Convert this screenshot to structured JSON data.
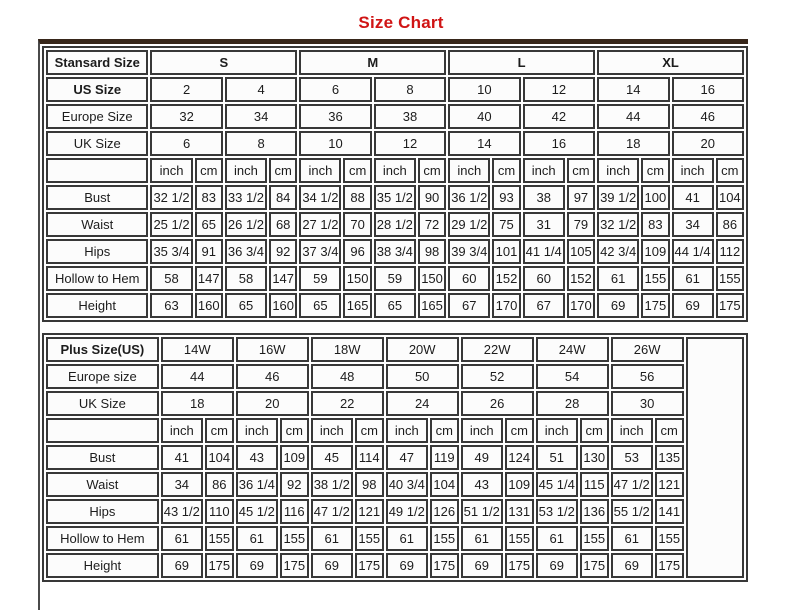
{
  "title": "Size Chart",
  "colors": {
    "title_red": "#d01414",
    "table_border": "#383838",
    "top_rule_brown": "#37261a",
    "cell_background": "#fcfcfc"
  },
  "units": {
    "inch": "inch",
    "cm": "cm"
  },
  "standard_table": {
    "corner_label": "Stansard Size",
    "size_groups": [
      "S",
      "M",
      "L",
      "XL"
    ],
    "header_rows": [
      {
        "label": "US Size",
        "bold": true,
        "values": [
          "2",
          "4",
          "6",
          "8",
          "10",
          "12",
          "14",
          "16"
        ]
      },
      {
        "label": "Europe Size",
        "bold": false,
        "values": [
          "32",
          "34",
          "36",
          "38",
          "40",
          "42",
          "44",
          "46"
        ]
      },
      {
        "label": "UK Size",
        "bold": false,
        "values": [
          "6",
          "8",
          "10",
          "12",
          "14",
          "16",
          "18",
          "20"
        ]
      }
    ],
    "measure_rows": [
      {
        "label": "Bust",
        "values": [
          "32 1/2",
          "83",
          "33 1/2",
          "84",
          "34 1/2",
          "88",
          "35 1/2",
          "90",
          "36 1/2",
          "93",
          "38",
          "97",
          "39 1/2",
          "100",
          "41",
          "104"
        ]
      },
      {
        "label": "Waist",
        "values": [
          "25 1/2",
          "65",
          "26 1/2",
          "68",
          "27 1/2",
          "70",
          "28 1/2",
          "72",
          "29 1/2",
          "75",
          "31",
          "79",
          "32 1/2",
          "83",
          "34",
          "86"
        ]
      },
      {
        "label": "Hips",
        "values": [
          "35 3/4",
          "91",
          "36 3/4",
          "92",
          "37 3/4",
          "96",
          "38 3/4",
          "98",
          "39 3/4",
          "101",
          "41 1/4",
          "105",
          "42 3/4",
          "109",
          "44 1/4",
          "112"
        ]
      },
      {
        "label": "Hollow to Hem",
        "values": [
          "58",
          "147",
          "58",
          "147",
          "59",
          "150",
          "59",
          "150",
          "60",
          "152",
          "60",
          "152",
          "61",
          "155",
          "61",
          "155"
        ]
      },
      {
        "label": "Height",
        "values": [
          "63",
          "160",
          "65",
          "160",
          "65",
          "165",
          "65",
          "165",
          "67",
          "170",
          "67",
          "170",
          "69",
          "175",
          "69",
          "175"
        ]
      }
    ]
  },
  "plus_table": {
    "corner_label": "Plus Size(US)",
    "sizes": [
      "14W",
      "16W",
      "18W",
      "20W",
      "22W",
      "24W",
      "26W"
    ],
    "header_rows": [
      {
        "label": "Europe size",
        "bold": false,
        "values": [
          "44",
          "46",
          "48",
          "50",
          "52",
          "54",
          "56"
        ]
      },
      {
        "label": "UK Size",
        "bold": false,
        "values": [
          "18",
          "20",
          "22",
          "24",
          "26",
          "28",
          "30"
        ]
      }
    ],
    "measure_rows": [
      {
        "label": "Bust",
        "values": [
          "41",
          "104",
          "43",
          "109",
          "45",
          "114",
          "47",
          "119",
          "49",
          "124",
          "51",
          "130",
          "53",
          "135"
        ]
      },
      {
        "label": "Waist",
        "values": [
          "34",
          "86",
          "36 1/4",
          "92",
          "38 1/2",
          "98",
          "40 3/4",
          "104",
          "43",
          "109",
          "45 1/4",
          "115",
          "47 1/2",
          "121"
        ]
      },
      {
        "label": "Hips",
        "values": [
          "43 1/2",
          "110",
          "45 1/2",
          "116",
          "47 1/2",
          "121",
          "49 1/2",
          "126",
          "51 1/2",
          "131",
          "53 1/2",
          "136",
          "55 1/2",
          "141"
        ]
      },
      {
        "label": "Hollow to Hem",
        "values": [
          "61",
          "155",
          "61",
          "155",
          "61",
          "155",
          "61",
          "155",
          "61",
          "155",
          "61",
          "155",
          "61",
          "155"
        ]
      },
      {
        "label": "Height",
        "values": [
          "69",
          "175",
          "69",
          "175",
          "69",
          "175",
          "69",
          "175",
          "69",
          "175",
          "69",
          "175",
          "69",
          "175"
        ]
      }
    ]
  }
}
